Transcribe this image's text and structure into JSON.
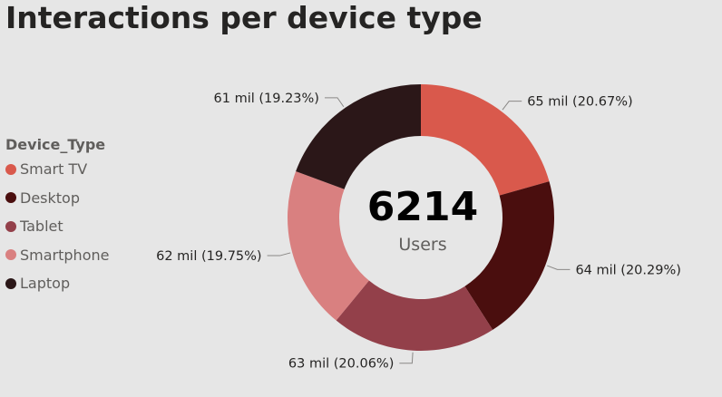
{
  "chart_data": {
    "type": "donut",
    "title": "Interactions per device type",
    "legend_title": "Device_Type",
    "legend_position": "left",
    "center_value": "6214",
    "center_label": "Users",
    "categories": [
      "Smart TV",
      "Desktop",
      "Tablet",
      "Smartphone",
      "Laptop"
    ],
    "values": [
      65,
      64,
      63,
      62,
      61
    ],
    "percent": [
      20.67,
      20.29,
      20.06,
      19.75,
      19.23
    ],
    "labels": [
      "65 mil (20.67%)",
      "64 mil (20.29%)",
      "63 mil (20.06%)",
      "62 mil (19.75%)",
      "61 mil (19.23%)"
    ],
    "colors": [
      "#d9594c",
      "#4a0e0e",
      "#93404a",
      "#d98080",
      "#2b1718"
    ]
  }
}
